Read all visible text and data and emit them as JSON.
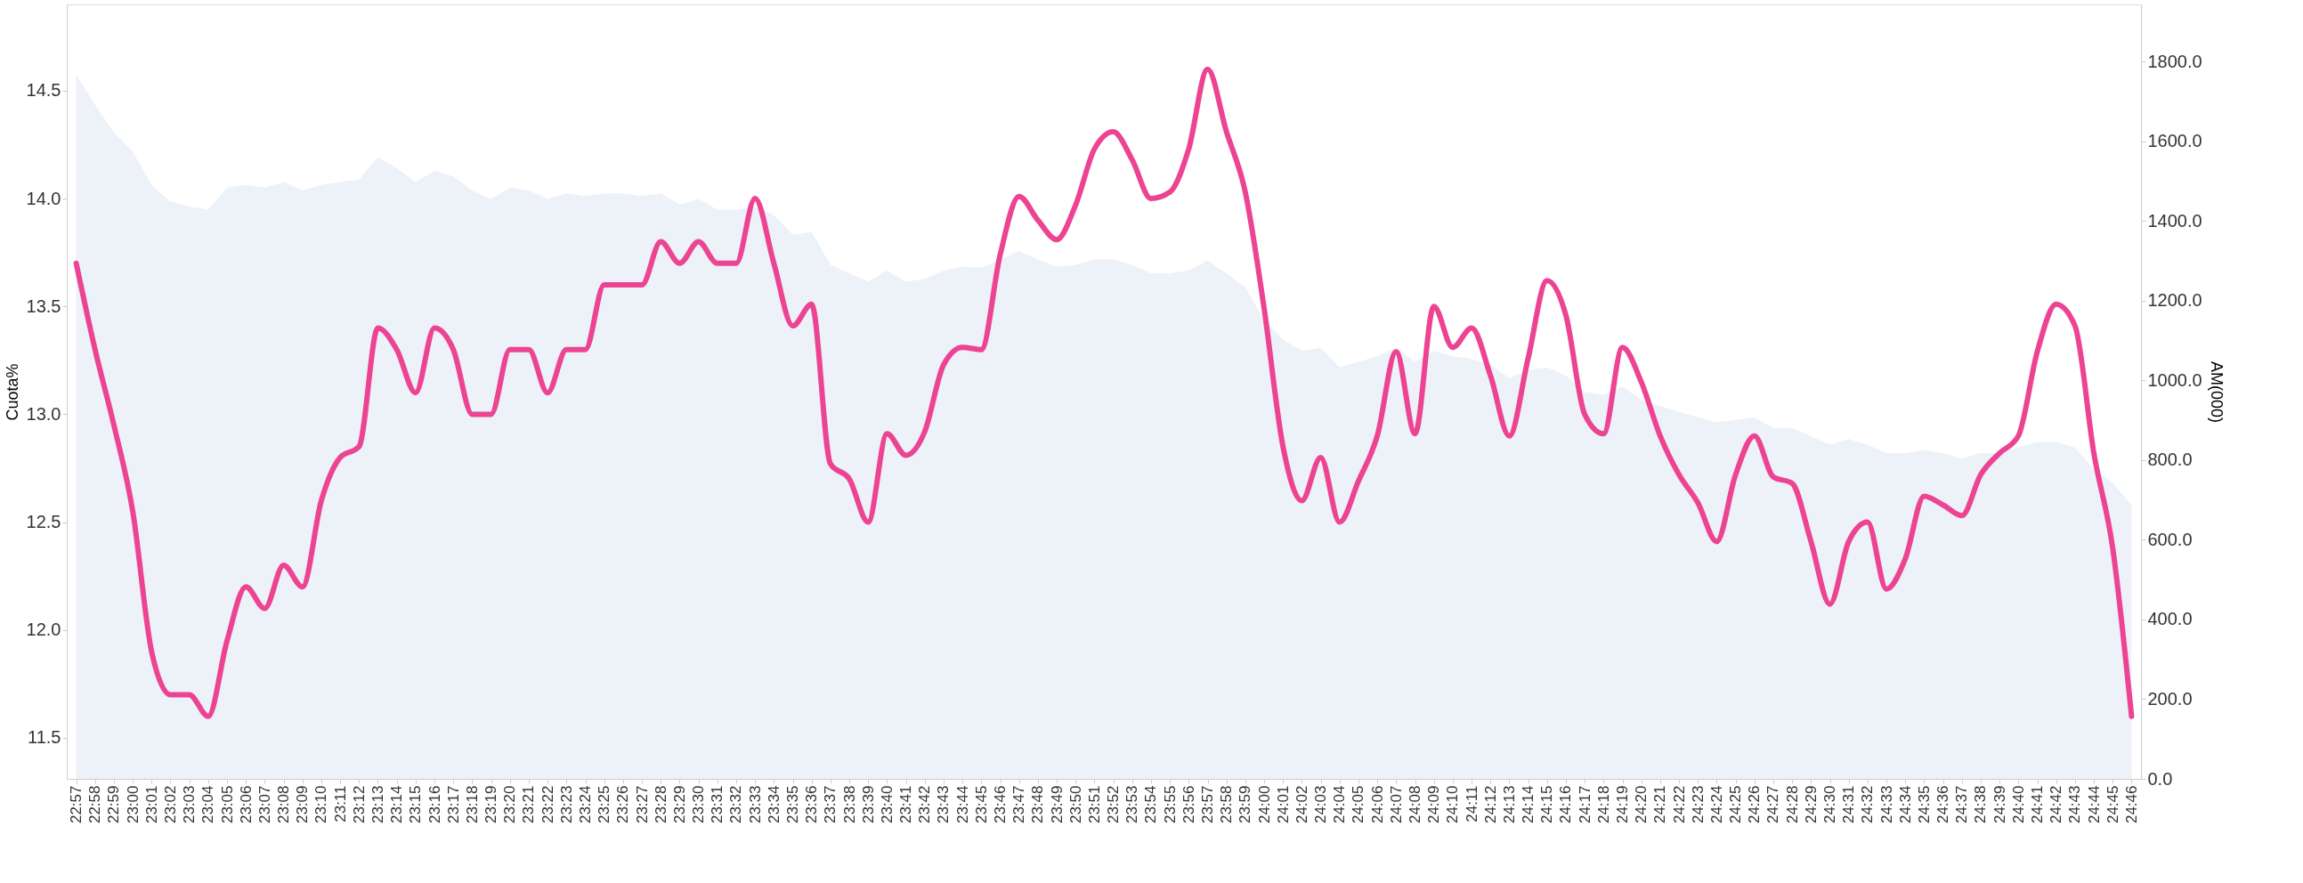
{
  "chart_data": {
    "type": "line",
    "ylabel": "Cuota%",
    "y2label": "AM(000)",
    "categories": [
      "22:57",
      "22:58",
      "22:59",
      "23:00",
      "23:01",
      "23:02",
      "23:03",
      "23:04",
      "23:05",
      "23:06",
      "23:07",
      "23:08",
      "23:09",
      "23:10",
      "23:11",
      "23:12",
      "23:13",
      "23:14",
      "23:15",
      "23:16",
      "23:17",
      "23:18",
      "23:19",
      "23:20",
      "23:21",
      "23:22",
      "23:23",
      "23:24",
      "23:25",
      "23:26",
      "23:27",
      "23:28",
      "23:29",
      "23:30",
      "23:31",
      "23:32",
      "23:33",
      "23:34",
      "23:35",
      "23:36",
      "23:37",
      "23:38",
      "23:39",
      "23:40",
      "23:41",
      "23:42",
      "23:43",
      "23:44",
      "23:45",
      "23:46",
      "23:47",
      "23:48",
      "23:49",
      "23:50",
      "23:51",
      "23:52",
      "23:53",
      "23:54",
      "23:55",
      "23:56",
      "23:57",
      "23:58",
      "23:59",
      "24:00",
      "24:01",
      "24:02",
      "24:03",
      "24:04",
      "24:05",
      "24:06",
      "24:07",
      "24:08",
      "24:09",
      "24:10",
      "24:11",
      "24:12",
      "24:13",
      "24:14",
      "24:15",
      "24:16",
      "24:17",
      "24:18",
      "24:19",
      "24:20",
      "24:21",
      "24:22",
      "24:23",
      "24:24",
      "24:25",
      "24:26",
      "24:27",
      "24:28",
      "24:29",
      "24:30",
      "24:31",
      "24:32",
      "24:33",
      "24:34",
      "24:35",
      "24:36",
      "24:37",
      "24:38",
      "24:39",
      "24:40",
      "24:41",
      "24:42",
      "24:43",
      "24:44",
      "24:45",
      "24:46"
    ],
    "series": [
      {
        "type": "area",
        "axis": "y2",
        "color": "#edf1f8",
        "values": [
          1768,
          1692,
          1623,
          1574,
          1491,
          1449,
          1436,
          1429,
          1484,
          1491,
          1484,
          1498,
          1477,
          1491,
          1498,
          1505,
          1560,
          1533,
          1498,
          1526,
          1512,
          1477,
          1456,
          1484,
          1477,
          1456,
          1470,
          1463,
          1470,
          1470,
          1463,
          1470,
          1442,
          1456,
          1429,
          1429,
          1436,
          1415,
          1366,
          1373,
          1290,
          1269,
          1248,
          1276,
          1248,
          1255,
          1276,
          1286,
          1283,
          1304,
          1325,
          1304,
          1286,
          1290,
          1304,
          1304,
          1290,
          1269,
          1269,
          1276,
          1301,
          1269,
          1234,
          1151,
          1103,
          1075,
          1082,
          1033,
          1047,
          1061,
          1082,
          1047,
          1075,
          1061,
          1054,
          1040,
          1006,
          1026,
          1033,
          1012,
          971,
          964,
          985,
          950,
          936,
          922,
          908,
          895,
          901,
          908,
          881,
          881,
          860,
          839,
          853,
          839,
          818,
          818,
          825,
          818,
          804,
          818,
          818,
          832,
          846,
          846,
          832,
          777,
          742,
          687
        ]
      },
      {
        "color": "#ec4492",
        "values": [
          13.7,
          13.3,
          12.95,
          12.55,
          11.9,
          11.7,
          11.7,
          11.6,
          11.95,
          12.2,
          12.1,
          12.3,
          12.2,
          12.6,
          12.8,
          12.85,
          13.4,
          13.3,
          13.1,
          13.4,
          13.3,
          13.0,
          13.0,
          13.3,
          13.3,
          13.1,
          13.3,
          13.3,
          13.6,
          13.6,
          13.6,
          13.8,
          13.7,
          13.8,
          13.7,
          13.7,
          14.0,
          13.7,
          13.41,
          13.51,
          12.77,
          12.7,
          12.5,
          12.91,
          12.81,
          12.92,
          13.23,
          13.31,
          13.3,
          13.74,
          14.01,
          13.9,
          13.81,
          13.97,
          14.23,
          14.31,
          14.18,
          14.0,
          14.03,
          14.23,
          14.6,
          14.31,
          14.03,
          13.49,
          12.85,
          12.6,
          12.8,
          12.5,
          12.69,
          12.9,
          13.29,
          12.91,
          13.5,
          13.31,
          13.4,
          13.18,
          12.9,
          13.26,
          13.62,
          13.46,
          13.0,
          12.91,
          13.31,
          13.15,
          12.9,
          12.72,
          12.59,
          12.41,
          12.72,
          12.9,
          12.71,
          12.68,
          12.41,
          12.12,
          12.41,
          12.5,
          12.19,
          12.33,
          12.62,
          12.58,
          12.53,
          12.72,
          12.82,
          12.9,
          13.29,
          13.51,
          13.41,
          12.82,
          12.38,
          11.6
        ]
      }
    ],
    "ylim": [
      11.31,
      14.9
    ],
    "yticks": [
      {
        "value": 11.5,
        "label": "11.5"
      },
      {
        "value": 12,
        "label": "12.0"
      },
      {
        "value": 12.5,
        "label": "12.5"
      },
      {
        "value": 13,
        "label": "13.0"
      },
      {
        "value": 13.5,
        "label": "13.5"
      },
      {
        "value": 14,
        "label": "14.0"
      },
      {
        "value": 14.5,
        "label": "14.5"
      }
    ],
    "y2lim": [
      0,
      1944
    ],
    "y2ticks": [
      {
        "value": 0,
        "label": "0.0"
      },
      {
        "value": 200,
        "label": "200.0"
      },
      {
        "value": 400,
        "label": "400.0"
      },
      {
        "value": 600,
        "label": "600.0"
      },
      {
        "value": 800,
        "label": "800.0"
      },
      {
        "value": 1000,
        "label": "1000.0"
      },
      {
        "value": 1200,
        "label": "1200.0"
      },
      {
        "value": 1400,
        "label": "1400.0"
      },
      {
        "value": 1600,
        "label": "1600.0"
      },
      {
        "value": 1800,
        "label": "1800.0"
      }
    ],
    "grid": false,
    "marker": "none",
    "line_style": "solid"
  }
}
